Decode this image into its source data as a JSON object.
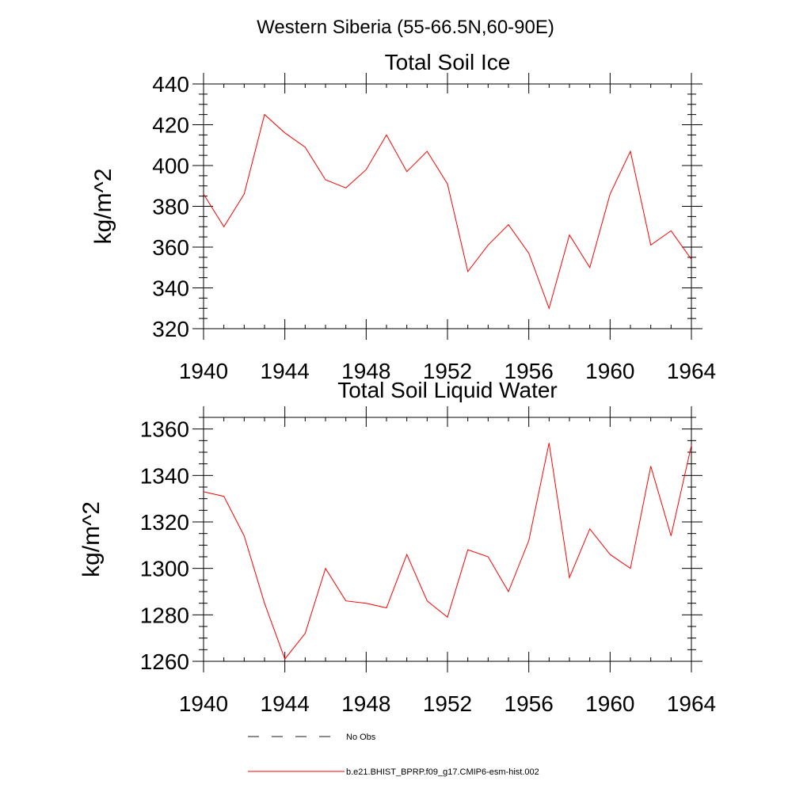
{
  "figure": {
    "title": "Western Siberia (55-66.5N,60-90E)"
  },
  "legend": {
    "placement": "bottom",
    "entries": [
      {
        "label": "No Obs",
        "style": "dashed",
        "color": "#1a1a1a"
      },
      {
        "label": "b.e21.BHIST_BPRP.f09_g17.CMIP6-esm-hist.002",
        "style": "solid",
        "color": "#ff0000"
      }
    ]
  },
  "chart_data": [
    {
      "type": "line",
      "title": "Total Soil Ice",
      "xlabel": "",
      "ylabel": "kg/m^2",
      "xlim": [
        1940,
        1964
      ],
      "ylim": [
        320,
        440
      ],
      "xticks": [
        1940,
        1944,
        1948,
        1952,
        1956,
        1960,
        1964
      ],
      "yticks": [
        320,
        340,
        360,
        380,
        400,
        420,
        440
      ],
      "grid": false,
      "series": [
        {
          "color": "#ff0000",
          "x": [
            1940,
            1941,
            1942,
            1943,
            1944,
            1945,
            1946,
            1947,
            1948,
            1949,
            1950,
            1951,
            1952,
            1953,
            1954,
            1955,
            1956,
            1957,
            1958,
            1959,
            1960,
            1961,
            1962,
            1963,
            1964
          ],
          "values": [
            386,
            370,
            386,
            425,
            416,
            409,
            393,
            389,
            398,
            415,
            397,
            407,
            391,
            348,
            361,
            371,
            357,
            330,
            366,
            350,
            386,
            407,
            361,
            368,
            354
          ]
        }
      ]
    },
    {
      "type": "line",
      "title": "Total Soil Liquid Water",
      "xlabel": "",
      "ylabel": "kg/m^2",
      "xlim": [
        1940,
        1964
      ],
      "ylim": [
        1260,
        1365
      ],
      "xticks": [
        1940,
        1944,
        1948,
        1952,
        1956,
        1960,
        1964
      ],
      "yticks": [
        1260,
        1280,
        1300,
        1320,
        1340,
        1360
      ],
      "grid": false,
      "series": [
        {
          "color": "#ff0000",
          "x": [
            1940,
            1941,
            1942,
            1943,
            1944,
            1945,
            1946,
            1947,
            1948,
            1949,
            1950,
            1951,
            1952,
            1953,
            1954,
            1955,
            1956,
            1957,
            1958,
            1959,
            1960,
            1961,
            1962,
            1963,
            1964
          ],
          "values": [
            1333,
            1331,
            1314,
            1285,
            1261,
            1272,
            1300,
            1286,
            1285,
            1283,
            1306,
            1286,
            1279,
            1308,
            1305,
            1290,
            1312,
            1354,
            1296,
            1317,
            1306,
            1300,
            1344,
            1314,
            1353
          ]
        }
      ]
    }
  ]
}
